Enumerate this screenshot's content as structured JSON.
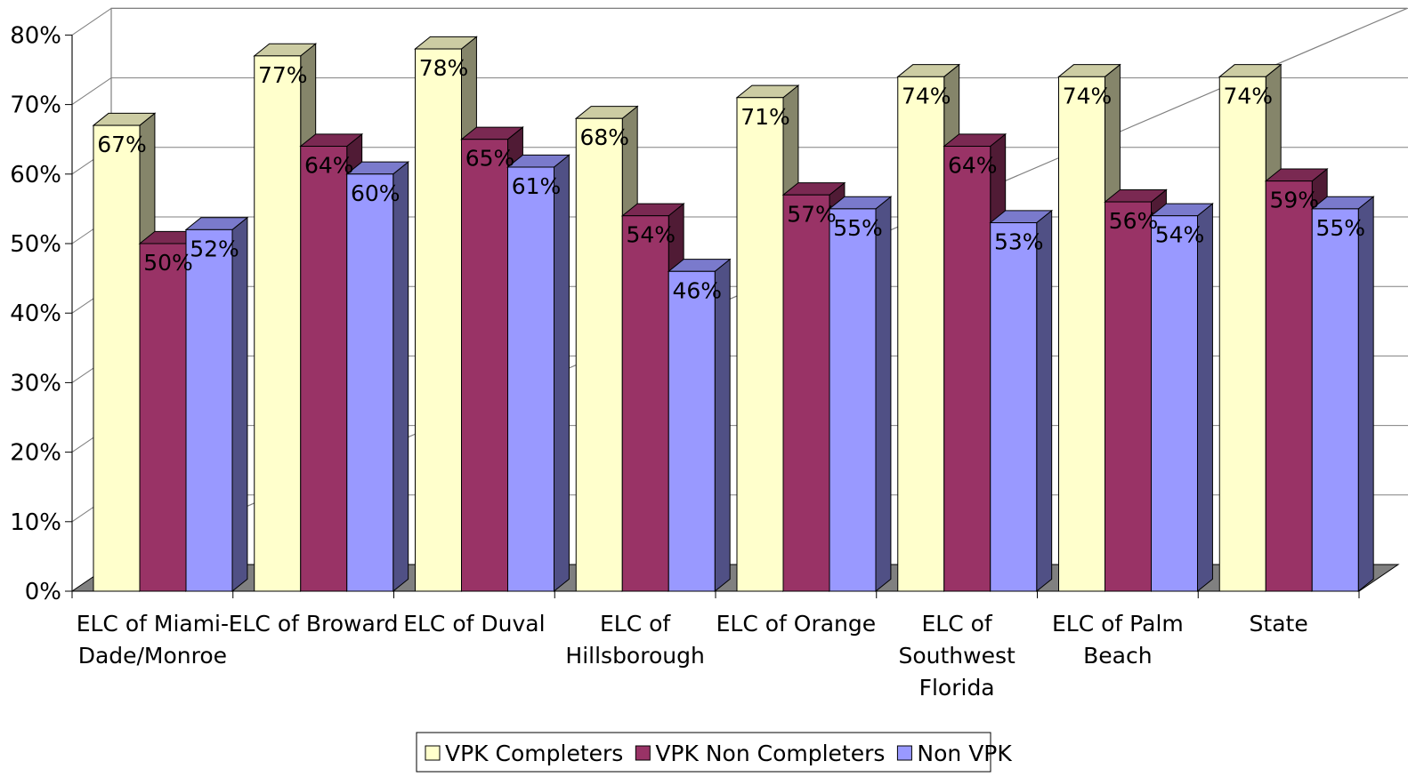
{
  "chart_data": {
    "type": "bar",
    "title": "",
    "xlabel": "",
    "ylabel": "",
    "ylim": [
      0,
      80
    ],
    "y_ticks": [
      "0%",
      "10%",
      "20%",
      "30%",
      "40%",
      "50%",
      "60%",
      "70%",
      "80%"
    ],
    "gridlines": true,
    "three_d": true,
    "legend_position": "bottom",
    "categories": [
      [
        "ELC of Miami-",
        "Dade/Monroe"
      ],
      [
        "ELC of Broward"
      ],
      [
        "ELC of Duval"
      ],
      [
        "ELC of",
        "Hillsborough"
      ],
      [
        "ELC of Orange"
      ],
      [
        "ELC of",
        "Southwest",
        "Florida"
      ],
      [
        "ELC of Palm",
        "Beach"
      ],
      [
        "State"
      ]
    ],
    "series": [
      {
        "name": "VPK Completers",
        "color": "#ffffcc",
        "values": [
          67,
          77,
          78,
          68,
          71,
          74,
          74,
          74
        ],
        "labels": [
          "67%",
          "77%",
          "78%",
          "68%",
          "71%",
          "74%",
          "74%",
          "74%"
        ]
      },
      {
        "name": "VPK Non Completers",
        "color": "#993366",
        "values": [
          50,
          64,
          65,
          54,
          57,
          64,
          56,
          59
        ],
        "labels": [
          "50%",
          "64%",
          "65%",
          "54%",
          "57%",
          "64%",
          "56%",
          "59%"
        ]
      },
      {
        "name": "Non VPK",
        "color": "#9999ff",
        "values": [
          52,
          60,
          61,
          46,
          55,
          53,
          54,
          55
        ],
        "labels": [
          "52%",
          "60%",
          "61%",
          "46%",
          "55%",
          "53%",
          "54%",
          "55%"
        ]
      }
    ]
  }
}
